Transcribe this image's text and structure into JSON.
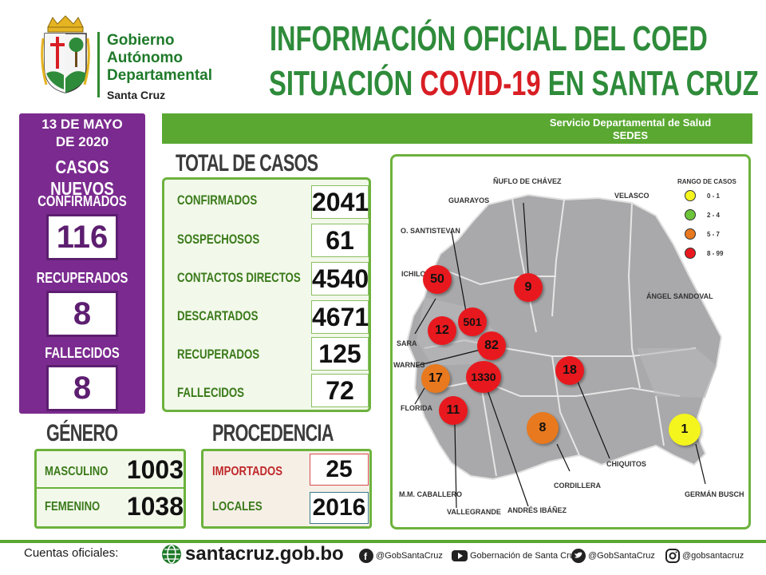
{
  "header": {
    "gov_lines": [
      "Gobierno",
      "Autónomo",
      "Departamental",
      "Santa Cruz"
    ],
    "title_line1": "INFORMACIÓN OFICIAL DEL COED",
    "title_line2_a": "SITUACIÓN ",
    "title_line2_b": "COVID-19",
    "title_line2_c": " EN SANTA CRUZ",
    "colors": {
      "green": "#2e8b3a",
      "red": "#d81e24"
    }
  },
  "service_bar": {
    "line1": "Servicio Departamental de Salud",
    "line2": "SEDES"
  },
  "daily": {
    "date_line1": "13 DE MAYO",
    "date_line2": "DE 2020",
    "subtitle": "CASOS NUEVOS",
    "items": [
      {
        "label": "CONFIRMADOS",
        "value": "116"
      },
      {
        "label": "RECUPERADOS",
        "value": "8"
      },
      {
        "label": "FALLECIDOS",
        "value": "8"
      }
    ]
  },
  "total": {
    "title": "TOTAL DE CASOS",
    "rows": [
      {
        "label": "CONFIRMADOS",
        "value": "2041"
      },
      {
        "label": "SOSPECHOSOS",
        "value": "61"
      },
      {
        "label": "CONTACTOS DIRECTOS",
        "value": "4540"
      },
      {
        "label": "DESCARTADOS",
        "value": "4671"
      },
      {
        "label": "RECUPERADOS",
        "value": "125"
      },
      {
        "label": "FALLECIDOS",
        "value": "72"
      }
    ]
  },
  "gender": {
    "title": "GÉNERO",
    "rows": [
      {
        "label": "MASCULINO",
        "value": "1003"
      },
      {
        "label": "FEMENINO",
        "value": "1038"
      }
    ]
  },
  "origin": {
    "title": "PROCEDENCIA",
    "rows": [
      {
        "label": "IMPORTADOS",
        "value": "25"
      },
      {
        "label": "LOCALES",
        "value": "2016"
      }
    ]
  },
  "map": {
    "legend_title": "RANGO DE CASOS",
    "legend": [
      {
        "label": "0 - 1",
        "color": "#f5f51e"
      },
      {
        "label": "2 - 4",
        "color": "#6cc43a"
      },
      {
        "label": "5 - 7",
        "color": "#e8791e"
      },
      {
        "label": "8 - 99",
        "color": "#e8191e"
      }
    ],
    "provinces": {
      "nuflo": "ÑUFLO DE CHÁVEZ",
      "guarayos": "GUARAYOS",
      "velasco": "VELASCO",
      "santistevan": "O. SANTISTEVAN",
      "ichilo": "ICHILO",
      "sandoval": "ÁNGEL SANDOVAL",
      "sara": "SARA",
      "warnes": "WARNES",
      "florida": "FLORIDA",
      "caballero": "M.M. CABALLERO",
      "vallegrande": "VALLEGRANDE",
      "ibanez": "ANDRÉS IBÁÑEZ",
      "cordillera": "CORDILLERA",
      "chiquitos": "CHIQUITOS",
      "busch": "GERMÁN BUSCH"
    },
    "bubbles": {
      "ichilo": "50",
      "nuflo": "9",
      "santistevan": "501",
      "sara": "12",
      "warnes": "82",
      "chiquitos": "18",
      "florida": "17",
      "ibanez": "1330",
      "vallegrande": "11",
      "cordillera": "8",
      "busch": "1"
    }
  },
  "footer": {
    "accounts_label": "Cuentas oficiales:",
    "website": "santacruz.gob.bo",
    "facebook": "@GobSantaCruz",
    "youtube": "Gobernación de Santa Cruz",
    "twitter": "@GobSantaCruz",
    "instagram": "@gobsantacruz"
  }
}
